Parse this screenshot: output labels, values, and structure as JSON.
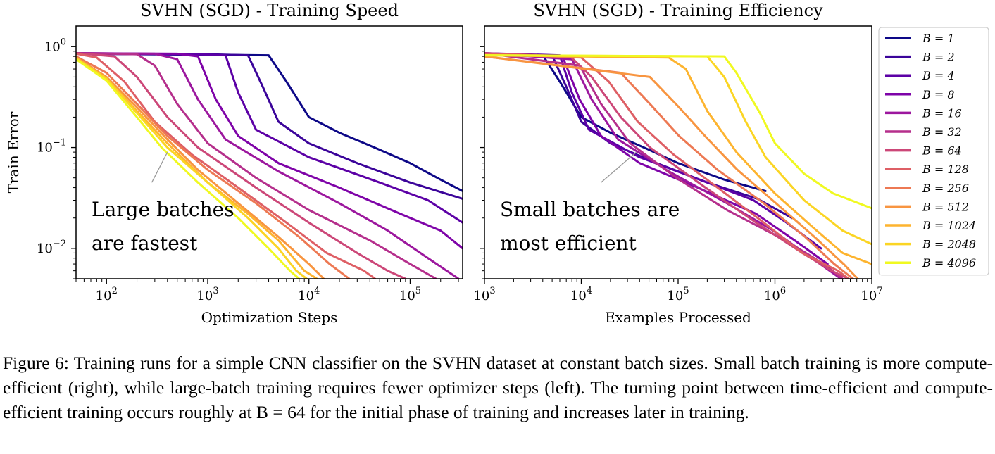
{
  "chart_data": [
    {
      "type": "line",
      "title": "SVHN (SGD) - Training Speed",
      "xlabel": "Optimization Steps",
      "ylabel": "Train Error",
      "xscale": "log",
      "yscale": "log",
      "xlim": [
        50,
        330000
      ],
      "ylim": [
        0.005,
        1.6
      ],
      "xticks": [
        {
          "value": 100,
          "base": "10",
          "exp": "2"
        },
        {
          "value": 1000,
          "base": "10",
          "exp": "3"
        },
        {
          "value": 10000,
          "base": "10",
          "exp": "4"
        },
        {
          "value": 100000,
          "base": "10",
          "exp": "5"
        }
      ],
      "yticks": [
        {
          "value": 1,
          "base": "10",
          "exp": "0"
        },
        {
          "value": 0.1,
          "base": "10",
          "exp": "−1"
        },
        {
          "value": 0.01,
          "base": "10",
          "exp": "−2"
        }
      ],
      "annotation": {
        "lines": [
          "Large batches",
          "are fastest"
        ],
        "pointer_from": [
          280,
          0.045
        ],
        "pointer_to": [
          400,
          0.09
        ]
      },
      "series": [
        {
          "name": "B = 1",
          "x": [
            50,
            1000,
            4000,
            6000,
            10000,
            20000,
            50000,
            100000,
            200000,
            330000
          ],
          "y": [
            0.85,
            0.83,
            0.82,
            0.45,
            0.2,
            0.14,
            0.095,
            0.07,
            0.048,
            0.037
          ]
        },
        {
          "name": "B = 2",
          "x": [
            50,
            1000,
            2500,
            3500,
            5000,
            10000,
            30000,
            100000,
            330000
          ],
          "y": [
            0.85,
            0.84,
            0.82,
            0.4,
            0.18,
            0.11,
            0.07,
            0.045,
            0.031
          ]
        },
        {
          "name": "B = 4",
          "x": [
            50,
            800,
            1500,
            2000,
            3000,
            10000,
            50000,
            150000,
            330000
          ],
          "y": [
            0.86,
            0.84,
            0.82,
            0.35,
            0.15,
            0.08,
            0.045,
            0.03,
            0.018
          ]
        },
        {
          "name": "B = 8",
          "x": [
            50,
            500,
            800,
            1200,
            2000,
            5000,
            20000,
            80000,
            200000,
            330000
          ],
          "y": [
            0.86,
            0.85,
            0.8,
            0.3,
            0.13,
            0.07,
            0.04,
            0.022,
            0.015,
            0.01
          ]
        },
        {
          "name": "B = 16",
          "x": [
            50,
            300,
            500,
            800,
            1500,
            5000,
            20000,
            60000,
            150000,
            300000
          ],
          "y": [
            0.86,
            0.85,
            0.75,
            0.3,
            0.12,
            0.058,
            0.028,
            0.015,
            0.008,
            0.005
          ]
        },
        {
          "name": "B = 32",
          "x": [
            50,
            200,
            300,
            500,
            1000,
            3000,
            10000,
            40000,
            100000,
            180000
          ],
          "y": [
            0.86,
            0.84,
            0.65,
            0.27,
            0.11,
            0.05,
            0.024,
            0.012,
            0.007,
            0.005
          ]
        },
        {
          "name": "B = 64",
          "x": [
            50,
            120,
            200,
            400,
            800,
            3000,
            10000,
            30000,
            60000,
            90000
          ],
          "y": [
            0.86,
            0.8,
            0.5,
            0.2,
            0.1,
            0.04,
            0.018,
            0.009,
            0.006,
            0.005
          ]
        },
        {
          "name": "B = 128",
          "x": [
            50,
            80,
            150,
            300,
            700,
            2000,
            6000,
            15000,
            35000,
            45000
          ],
          "y": [
            0.85,
            0.78,
            0.45,
            0.18,
            0.085,
            0.04,
            0.018,
            0.009,
            0.006,
            0.005
          ]
        },
        {
          "name": "B = 256",
          "x": [
            50,
            100,
            200,
            400,
            1000,
            3000,
            8000,
            16000,
            25000
          ],
          "y": [
            0.8,
            0.55,
            0.27,
            0.13,
            0.06,
            0.028,
            0.013,
            0.007,
            0.005
          ]
        },
        {
          "name": "B = 512",
          "x": [
            50,
            100,
            200,
            400,
            800,
            2000,
            5000,
            10000,
            14000
          ],
          "y": [
            0.78,
            0.5,
            0.25,
            0.12,
            0.06,
            0.028,
            0.013,
            0.007,
            0.005
          ]
        },
        {
          "name": "B = 1024",
          "x": [
            50,
            100,
            200,
            400,
            1000,
            2500,
            5000,
            9000,
            12000
          ],
          "y": [
            0.78,
            0.48,
            0.23,
            0.11,
            0.045,
            0.022,
            0.012,
            0.006,
            0.005
          ]
        },
        {
          "name": "B = 2048",
          "x": [
            50,
            100,
            200,
            400,
            1000,
            2500,
            5000,
            7500,
            9500
          ],
          "y": [
            0.76,
            0.48,
            0.22,
            0.1,
            0.045,
            0.02,
            0.01,
            0.006,
            0.005
          ]
        },
        {
          "name": "B = 4096",
          "x": [
            50,
            100,
            200,
            350,
            800,
            2000,
            4000,
            6500,
            8000
          ],
          "y": [
            0.75,
            0.46,
            0.2,
            0.1,
            0.045,
            0.02,
            0.01,
            0.006,
            0.005
          ]
        }
      ]
    },
    {
      "type": "line",
      "title": "SVHN (SGD) - Training Efficiency",
      "xlabel": "Examples Processed",
      "ylabel": "",
      "xscale": "log",
      "yscale": "log",
      "xlim": [
        1000,
        10000000
      ],
      "ylim": [
        0.005,
        1.6
      ],
      "xticks": [
        {
          "value": 1000,
          "base": "10",
          "exp": "3"
        },
        {
          "value": 10000,
          "base": "10",
          "exp": "4"
        },
        {
          "value": 100000,
          "base": "10",
          "exp": "5"
        },
        {
          "value": 1000000,
          "base": "10",
          "exp": "6"
        },
        {
          "value": 10000000,
          "base": "10",
          "exp": "7"
        }
      ],
      "yticks": [
        {
          "value": 1,
          "base": "",
          "exp": ""
        },
        {
          "value": 0.1,
          "base": "",
          "exp": ""
        },
        {
          "value": 0.01,
          "base": "",
          "exp": ""
        }
      ],
      "annotation": {
        "lines": [
          "Small batches are",
          "most efficient"
        ],
        "pointer_from": [
          16000,
          0.045
        ],
        "pointer_to": [
          37000,
          0.09
        ]
      },
      "series": [
        {
          "name": "B = 1",
          "x": [
            1000,
            4000,
            6000,
            10000,
            20000,
            50000,
            100000,
            300000,
            800000
          ],
          "y": [
            0.85,
            0.82,
            0.45,
            0.2,
            0.14,
            0.095,
            0.07,
            0.048,
            0.037
          ]
        },
        {
          "name": "B = 2",
          "x": [
            1000,
            5000,
            7000,
            10000,
            20000,
            60000,
            200000,
            660000,
            1500000
          ],
          "y": [
            0.85,
            0.82,
            0.4,
            0.18,
            0.11,
            0.07,
            0.045,
            0.031,
            0.02
          ]
        },
        {
          "name": "B = 4",
          "x": [
            1000,
            6000,
            8000,
            12000,
            40000,
            200000,
            600000,
            1320000,
            3000000
          ],
          "y": [
            0.86,
            0.82,
            0.35,
            0.15,
            0.08,
            0.045,
            0.03,
            0.018,
            0.01
          ]
        },
        {
          "name": "B = 8",
          "x": [
            1000,
            6400,
            9600,
            16000,
            40000,
            160000,
            640000,
            1600000,
            3500000
          ],
          "y": [
            0.86,
            0.8,
            0.3,
            0.13,
            0.07,
            0.04,
            0.022,
            0.012,
            0.007
          ]
        },
        {
          "name": "B = 16",
          "x": [
            1000,
            8000,
            12800,
            24000,
            80000,
            320000,
            960000,
            2400000,
            4800000
          ],
          "y": [
            0.86,
            0.75,
            0.3,
            0.12,
            0.058,
            0.028,
            0.015,
            0.008,
            0.005
          ]
        },
        {
          "name": "B = 32",
          "x": [
            1000,
            9600,
            16000,
            32000,
            96000,
            320000,
            1280000,
            3200000,
            5000000
          ],
          "y": [
            0.86,
            0.65,
            0.27,
            0.11,
            0.05,
            0.024,
            0.012,
            0.007,
            0.005
          ]
        },
        {
          "name": "B = 64",
          "x": [
            1000,
            7700,
            12800,
            25600,
            51200,
            192000,
            640000,
            1920000,
            3840000,
            5760000
          ],
          "y": [
            0.86,
            0.8,
            0.5,
            0.2,
            0.1,
            0.04,
            0.018,
            0.009,
            0.006,
            0.005
          ]
        },
        {
          "name": "B = 128",
          "x": [
            1000,
            10000,
            19200,
            38400,
            90000,
            256000,
            768000,
            1920000,
            4480000,
            5760000
          ],
          "y": [
            0.85,
            0.78,
            0.45,
            0.18,
            0.085,
            0.04,
            0.018,
            0.009,
            0.006,
            0.005
          ]
        },
        {
          "name": "B = 256",
          "x": [
            1000,
            25600,
            51200,
            102400,
            256000,
            768000,
            2048000,
            4096000,
            6400000
          ],
          "y": [
            0.8,
            0.55,
            0.27,
            0.13,
            0.06,
            0.028,
            0.013,
            0.007,
            0.005
          ]
        },
        {
          "name": "B = 512",
          "x": [
            1000,
            51200,
            102400,
            204800,
            409600,
            1024000,
            2560000,
            5120000,
            7168000
          ],
          "y": [
            0.8,
            0.5,
            0.25,
            0.12,
            0.06,
            0.028,
            0.013,
            0.007,
            0.005
          ]
        },
        {
          "name": "B = 1024",
          "x": [
            1000,
            80000,
            120000,
            200000,
            400000,
            1000000,
            2500000,
            5000000,
            10000000
          ],
          "y": [
            0.82,
            0.78,
            0.6,
            0.23,
            0.09,
            0.035,
            0.016,
            0.009,
            0.007
          ]
        },
        {
          "name": "B = 2048",
          "x": [
            1000,
            200000,
            300000,
            500000,
            800000,
            2000000,
            5000000,
            10000000
          ],
          "y": [
            0.82,
            0.8,
            0.5,
            0.18,
            0.08,
            0.03,
            0.015,
            0.011
          ]
        },
        {
          "name": "B = 4096",
          "x": [
            1000,
            300000,
            400000,
            700000,
            1000000,
            2000000,
            4000000,
            10000000
          ],
          "y": [
            0.82,
            0.8,
            0.55,
            0.22,
            0.11,
            0.055,
            0.035,
            0.025
          ]
        }
      ]
    }
  ],
  "legend": {
    "placement": "right",
    "entries": [
      {
        "label": "B = 1",
        "color": "#0d0887"
      },
      {
        "label": "B = 2",
        "color": "#3b049a"
      },
      {
        "label": "B = 4",
        "color": "#5c01a6"
      },
      {
        "label": "B = 8",
        "color": "#7e03a8"
      },
      {
        "label": "B = 16",
        "color": "#9c179e"
      },
      {
        "label": "B = 32",
        "color": "#b52f8c"
      },
      {
        "label": "B = 64",
        "color": "#cc4778"
      },
      {
        "label": "B = 128",
        "color": "#de5f65"
      },
      {
        "label": "B = 256",
        "color": "#ed7953"
      },
      {
        "label": "B = 512",
        "color": "#f89540"
      },
      {
        "label": "B = 1024",
        "color": "#fdb42f"
      },
      {
        "label": "B = 2048",
        "color": "#fbd524"
      },
      {
        "label": "B = 4096",
        "color": "#f0f921"
      }
    ]
  },
  "caption": {
    "text": "Figure 6: Training runs for a simple CNN classifier on the SVHN dataset at constant batch sizes. Small batch training is more compute-efficient (right), while large-batch training requires fewer optimizer steps (left). The turning point between time-efficient and compute-efficient training occurs roughly at B = 64 for the initial phase of training and increases later in training."
  }
}
